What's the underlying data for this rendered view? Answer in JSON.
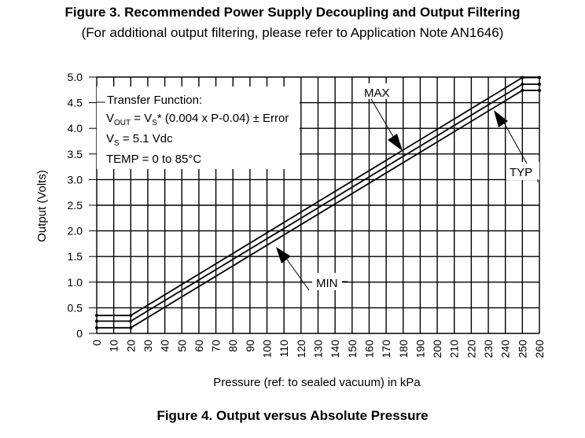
{
  "header": {
    "title": "Figure 3. Recommended Power Supply Decoupling and Output Filtering",
    "subtitle": "(For additional output filtering, please refer to Application Note AN1646)"
  },
  "caption": "Figure 4. Output versus Absolute Pressure",
  "chart_data": {
    "type": "line",
    "title": "",
    "xlabel": "Pressure (ref: to sealed vacuum) in kPa",
    "ylabel": "Output (Volts)",
    "xlim": [
      0,
      260
    ],
    "ylim": [
      0,
      5.0
    ],
    "x_ticks": [
      "0",
      "10",
      "20",
      "30",
      "40",
      "50",
      "60",
      "70",
      "80",
      "90",
      "100",
      "110",
      "120",
      "130",
      "140",
      "150",
      "160",
      "170",
      "180",
      "190",
      "200",
      "210",
      "220",
      "230",
      "240",
      "250",
      "260"
    ],
    "y_ticks": [
      "0",
      "0.5",
      "1.0",
      "1.5",
      "2.0",
      "2.5",
      "3.0",
      "3.5",
      "4.0",
      "4.5",
      "5.0"
    ],
    "grid": true,
    "series": [
      {
        "name": "MAX",
        "points": [
          [
            0,
            0.35
          ],
          [
            20,
            0.35
          ],
          [
            250,
            4.99
          ],
          [
            260,
            4.99
          ]
        ]
      },
      {
        "name": "TYP",
        "points": [
          [
            0,
            0.24
          ],
          [
            20,
            0.24
          ],
          [
            250,
            4.86
          ],
          [
            260,
            4.86
          ]
        ]
      },
      {
        "name": "MIN",
        "points": [
          [
            0,
            0.11
          ],
          [
            20,
            0.11
          ],
          [
            250,
            4.74
          ],
          [
            260,
            4.74
          ]
        ]
      }
    ],
    "annotations": {
      "box_lines": [
        "Transfer Function:",
        {
          "main": "V",
          "sub1": "OUT",
          "mid1": " = V",
          "sub2": "S",
          "rest": "* (0.004 x P-0.04) ± Error"
        },
        {
          "main": "V",
          "sub": "S",
          "rest": " = 5.1 Vdc"
        },
        "TEMP = 0 to 85°C"
      ],
      "labels": [
        "MAX",
        "TYP",
        "MIN"
      ]
    }
  }
}
